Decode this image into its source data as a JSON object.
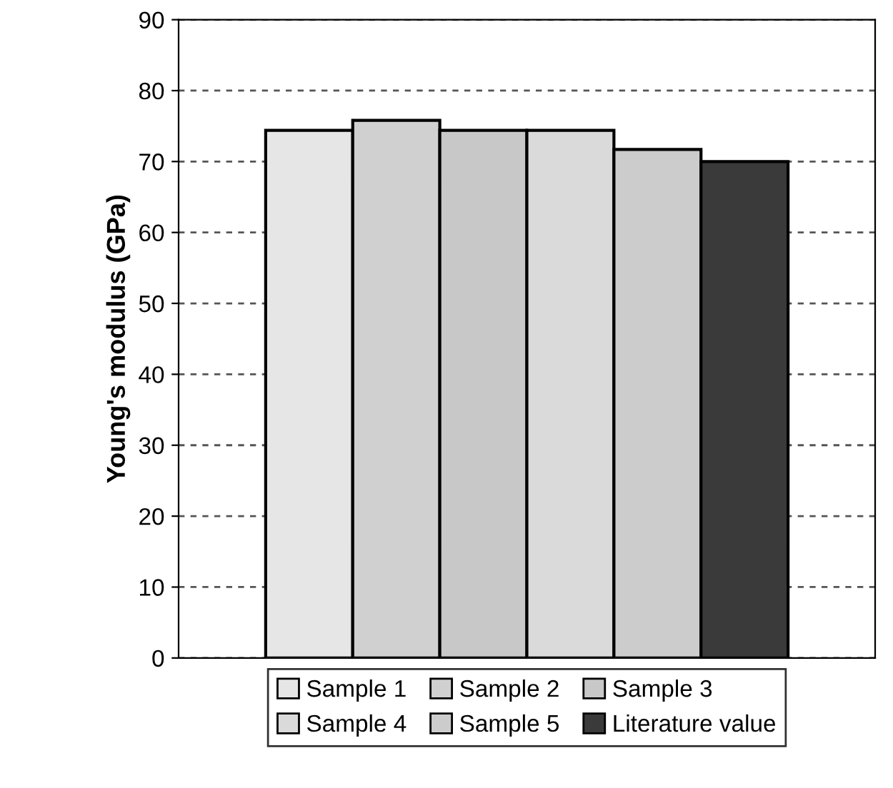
{
  "chart_data": {
    "type": "bar",
    "ylabel": "Young's modulus (GPa)",
    "categories": [
      null
    ],
    "series": [
      {
        "name": "Sample 1",
        "color": "#e6e6e6",
        "values": [
          74.4
        ]
      },
      {
        "name": "Sample 2",
        "color": "#d0d0d0",
        "values": [
          75.8
        ]
      },
      {
        "name": "Sample 3",
        "color": "#c8c8c8",
        "values": [
          74.4
        ]
      },
      {
        "name": "Sample 4",
        "color": "#dadada",
        "values": [
          74.4
        ]
      },
      {
        "name": "Sample 5",
        "color": "#cccccc",
        "values": [
          71.7
        ]
      },
      {
        "name": "Literature value",
        "color": "#3a3a3a",
        "values": [
          70.0
        ]
      }
    ],
    "ylim": [
      0,
      90
    ],
    "yticks": [
      0,
      10,
      20,
      30,
      40,
      50,
      60,
      70,
      80,
      90
    ],
    "grid": "y",
    "legend": "bottom",
    "tick_labels": "y"
  }
}
